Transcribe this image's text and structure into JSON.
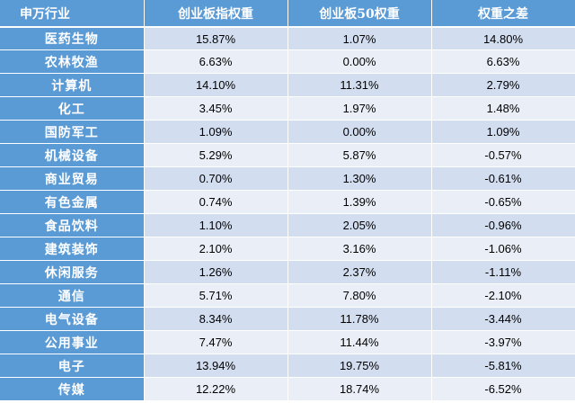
{
  "header": {
    "industry": "申万行业",
    "chinext_weight": "创业板指权重",
    "chinext50_weight": "创业板50权重",
    "weight_diff": "权重之差"
  },
  "rows": [
    {
      "industry": "医药生物",
      "chinext": "15.87%",
      "chinext50": "1.07%",
      "diff": "14.80%"
    },
    {
      "industry": "农林牧渔",
      "chinext": "6.63%",
      "chinext50": "0.00%",
      "diff": "6.63%"
    },
    {
      "industry": "计算机",
      "chinext": "14.10%",
      "chinext50": "11.31%",
      "diff": "2.79%"
    },
    {
      "industry": "化工",
      "chinext": "3.45%",
      "chinext50": "1.97%",
      "diff": "1.48%"
    },
    {
      "industry": "国防军工",
      "chinext": "1.09%",
      "chinext50": "0.00%",
      "diff": "1.09%"
    },
    {
      "industry": "机械设备",
      "chinext": "5.29%",
      "chinext50": "5.87%",
      "diff": "-0.57%"
    },
    {
      "industry": "商业贸易",
      "chinext": "0.70%",
      "chinext50": "1.30%",
      "diff": "-0.61%"
    },
    {
      "industry": "有色金属",
      "chinext": "0.74%",
      "chinext50": "1.39%",
      "diff": "-0.65%"
    },
    {
      "industry": "食品饮料",
      "chinext": "1.10%",
      "chinext50": "2.05%",
      "diff": "-0.96%"
    },
    {
      "industry": "建筑装饰",
      "chinext": "2.10%",
      "chinext50": "3.16%",
      "diff": "-1.06%"
    },
    {
      "industry": "休闲服务",
      "chinext": "1.26%",
      "chinext50": "2.37%",
      "diff": "-1.11%"
    },
    {
      "industry": "通信",
      "chinext": "5.71%",
      "chinext50": "7.80%",
      "diff": "-2.10%"
    },
    {
      "industry": "电气设备",
      "chinext": "8.34%",
      "chinext50": "11.78%",
      "diff": "-3.44%"
    },
    {
      "industry": "公用事业",
      "chinext": "7.47%",
      "chinext50": "11.44%",
      "diff": "-3.97%"
    },
    {
      "industry": "电子",
      "chinext": "13.94%",
      "chinext50": "19.75%",
      "diff": "-5.81%"
    },
    {
      "industry": "传媒",
      "chinext": "12.22%",
      "chinext50": "18.74%",
      "diff": "-6.52%"
    }
  ],
  "colors": {
    "header_bg": "#5b9bd5",
    "row_odd": "#d2def0",
    "row_even": "#eaeff7"
  }
}
